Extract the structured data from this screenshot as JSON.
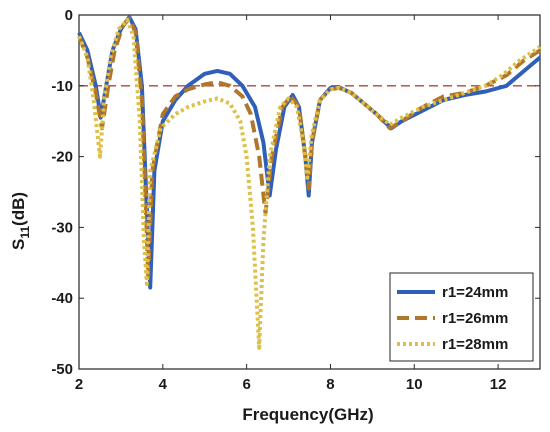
{
  "chart_data": {
    "type": "line",
    "title": "",
    "xlabel": "Frequency(GHz)",
    "ylabel_main": "S",
    "ylabel_sub": "11",
    "ylabel_unit": "(dB)",
    "xlim": [
      2,
      13
    ],
    "ylim": [
      -50,
      0
    ],
    "xticks": [
      2,
      4,
      6,
      8,
      10,
      12
    ],
    "yticks": [
      0,
      -10,
      -20,
      -30,
      -40,
      -50
    ],
    "xtick_labels": [
      "2",
      "4",
      "6",
      "8",
      "10",
      "12"
    ],
    "ytick_labels": [
      "0",
      "-10",
      "-20",
      "-30",
      "-40",
      "-50"
    ],
    "grid": false,
    "reference_line": {
      "y": -10,
      "color": "#b5453b",
      "style": "dashed"
    },
    "legend": {
      "placement": "bottom-right"
    },
    "series": [
      {
        "name": "r1=24mm",
        "color": "#2f5fb8",
        "style": "solid",
        "points": [
          [
            2,
            -2.5
          ],
          [
            2.2,
            -5
          ],
          [
            2.4,
            -10
          ],
          [
            2.52,
            -14.5
          ],
          [
            2.65,
            -10
          ],
          [
            2.8,
            -5
          ],
          [
            3.0,
            -2
          ],
          [
            3.2,
            -0.3
          ],
          [
            3.35,
            -2
          ],
          [
            3.5,
            -10
          ],
          [
            3.6,
            -25
          ],
          [
            3.7,
            -38.5
          ],
          [
            3.8,
            -22
          ],
          [
            4.0,
            -15
          ],
          [
            4.3,
            -12
          ],
          [
            4.6,
            -10
          ],
          [
            5.0,
            -8.3
          ],
          [
            5.3,
            -7.9
          ],
          [
            5.6,
            -8.3
          ],
          [
            5.9,
            -10
          ],
          [
            6.2,
            -13
          ],
          [
            6.4,
            -18
          ],
          [
            6.55,
            -25.5
          ],
          [
            6.7,
            -19
          ],
          [
            6.9,
            -13
          ],
          [
            7.1,
            -11.3
          ],
          [
            7.25,
            -13
          ],
          [
            7.4,
            -20
          ],
          [
            7.48,
            -25.5
          ],
          [
            7.56,
            -18
          ],
          [
            7.75,
            -12
          ],
          [
            8.0,
            -10.3
          ],
          [
            8.2,
            -10.2
          ],
          [
            8.5,
            -11
          ],
          [
            8.8,
            -12.5
          ],
          [
            9.1,
            -14
          ],
          [
            9.45,
            -16
          ],
          [
            9.7,
            -15
          ],
          [
            10.2,
            -13.5
          ],
          [
            10.7,
            -12
          ],
          [
            11.2,
            -11.3
          ],
          [
            11.7,
            -10.8
          ],
          [
            12.2,
            -10
          ],
          [
            12.6,
            -8
          ],
          [
            13,
            -6
          ]
        ]
      },
      {
        "name": "r1=26mm",
        "color": "#b0772c",
        "style": "dashed",
        "points": [
          [
            2,
            -3
          ],
          [
            2.2,
            -6
          ],
          [
            2.4,
            -11
          ],
          [
            2.55,
            -16
          ],
          [
            2.7,
            -10
          ],
          [
            2.85,
            -5
          ],
          [
            3.05,
            -1.5
          ],
          [
            3.2,
            -0.5
          ],
          [
            3.35,
            -2.5
          ],
          [
            3.5,
            -12
          ],
          [
            3.6,
            -28
          ],
          [
            3.65,
            -37
          ],
          [
            3.75,
            -22
          ],
          [
            4.0,
            -14
          ],
          [
            4.3,
            -11.5
          ],
          [
            4.6,
            -10.5
          ],
          [
            5.0,
            -9.8
          ],
          [
            5.3,
            -9.5
          ],
          [
            5.6,
            -10
          ],
          [
            5.9,
            -11.5
          ],
          [
            6.1,
            -14
          ],
          [
            6.3,
            -20
          ],
          [
            6.45,
            -28
          ],
          [
            6.6,
            -20
          ],
          [
            6.85,
            -13
          ],
          [
            7.05,
            -11.5
          ],
          [
            7.25,
            -13
          ],
          [
            7.4,
            -20
          ],
          [
            7.48,
            -24.5
          ],
          [
            7.56,
            -18
          ],
          [
            7.75,
            -12
          ],
          [
            8.0,
            -10.5
          ],
          [
            8.2,
            -10.3
          ],
          [
            8.5,
            -11
          ],
          [
            8.8,
            -12.5
          ],
          [
            9.1,
            -14
          ],
          [
            9.42,
            -16
          ],
          [
            9.7,
            -15
          ],
          [
            10.2,
            -13
          ],
          [
            10.7,
            -11.5
          ],
          [
            11.2,
            -11
          ],
          [
            11.7,
            -10
          ],
          [
            12.2,
            -8.5
          ],
          [
            12.6,
            -6.5
          ],
          [
            13,
            -5
          ]
        ]
      },
      {
        "name": "r1=28mm",
        "color": "#dcc04a",
        "style": "dotted",
        "points": [
          [
            2,
            -3
          ],
          [
            2.2,
            -6
          ],
          [
            2.35,
            -12
          ],
          [
            2.5,
            -20
          ],
          [
            2.6,
            -12
          ],
          [
            2.75,
            -6
          ],
          [
            2.95,
            -2
          ],
          [
            3.15,
            -0.7
          ],
          [
            3.3,
            -3
          ],
          [
            3.45,
            -15
          ],
          [
            3.55,
            -32
          ],
          [
            3.62,
            -38
          ],
          [
            3.7,
            -22
          ],
          [
            3.95,
            -16
          ],
          [
            4.3,
            -14
          ],
          [
            4.6,
            -13
          ],
          [
            5.0,
            -12.2
          ],
          [
            5.3,
            -11.8
          ],
          [
            5.6,
            -12.5
          ],
          [
            5.85,
            -15
          ],
          [
            6.0,
            -20
          ],
          [
            6.15,
            -30
          ],
          [
            6.3,
            -47
          ],
          [
            6.4,
            -32
          ],
          [
            6.55,
            -20
          ],
          [
            6.8,
            -13
          ],
          [
            7.0,
            -11.8
          ],
          [
            7.2,
            -13
          ],
          [
            7.35,
            -18
          ],
          [
            7.45,
            -23
          ],
          [
            7.55,
            -17
          ],
          [
            7.75,
            -12
          ],
          [
            8.0,
            -10.5
          ],
          [
            8.2,
            -10.3
          ],
          [
            8.5,
            -11
          ],
          [
            8.8,
            -12.5
          ],
          [
            9.1,
            -14
          ],
          [
            9.42,
            -15.5
          ],
          [
            9.7,
            -14.5
          ],
          [
            10.2,
            -13
          ],
          [
            10.7,
            -12
          ],
          [
            11.2,
            -11
          ],
          [
            11.7,
            -10
          ],
          [
            12.1,
            -8.5
          ],
          [
            12.5,
            -6.5
          ],
          [
            13,
            -4.5
          ]
        ]
      }
    ]
  }
}
